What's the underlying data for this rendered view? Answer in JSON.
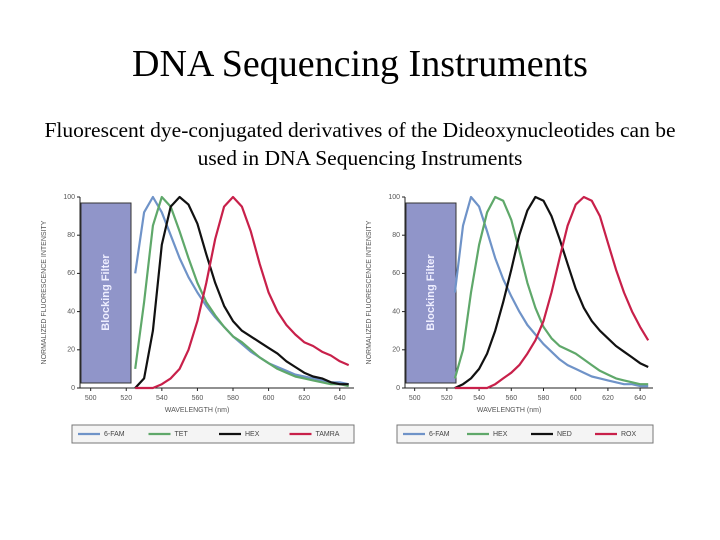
{
  "title": "DNA Sequencing Instruments",
  "subtitle": "Fluorescent dye-conjugated derivatives of the Dideoxynucleotides can be used in DNA Sequencing Instruments",
  "chart_data": [
    {
      "type": "line",
      "annotation": "Blocking Filter",
      "x_label": "WAVELENGTH (nm)",
      "y_label": "NORMALIZED FLUORESCENCE INTENSITY",
      "x": [
        525,
        530,
        535,
        540,
        545,
        550,
        555,
        560,
        565,
        570,
        575,
        580,
        585,
        590,
        595,
        600,
        605,
        610,
        615,
        620,
        625,
        630,
        635,
        640,
        645
      ],
      "series": [
        {
          "name": "6-FAM",
          "color": "#6f93c8",
          "values": [
            60,
            92,
            100,
            92,
            80,
            68,
            58,
            50,
            43,
            37,
            32,
            27,
            23,
            19,
            16,
            13,
            11,
            9,
            7,
            6,
            5,
            4,
            3,
            3,
            2
          ]
        },
        {
          "name": "TET",
          "color": "#5fa86a",
          "values": [
            10,
            45,
            85,
            100,
            95,
            82,
            68,
            55,
            45,
            38,
            32,
            27,
            24,
            20,
            16,
            13,
            10,
            8,
            6,
            5,
            4,
            3,
            2,
            2,
            1
          ]
        },
        {
          "name": "HEX",
          "color": "#111111",
          "values": [
            0,
            5,
            30,
            75,
            95,
            100,
            96,
            86,
            70,
            55,
            43,
            35,
            30,
            27,
            24,
            21,
            18,
            14,
            11,
            8,
            6,
            5,
            3,
            2,
            2
          ]
        },
        {
          "name": "TAMRA",
          "color": "#c8204a",
          "values": [
            0,
            0,
            0,
            2,
            5,
            10,
            20,
            35,
            55,
            78,
            95,
            100,
            95,
            82,
            65,
            50,
            40,
            33,
            28,
            24,
            22,
            19,
            17,
            14,
            12
          ]
        }
      ],
      "xlim": [
        494,
        648
      ],
      "ylim": [
        0,
        100
      ],
      "xticks": [
        500,
        520,
        540,
        560,
        580,
        600,
        620,
        640
      ],
      "yticks": [
        0,
        20,
        40,
        60,
        80,
        100
      ]
    },
    {
      "type": "line",
      "annotation": "Blocking Filter",
      "x_label": "WAVELENGTH (nm)",
      "y_label": "NORMALIZED FLUORESCENCE INTENSITY",
      "x": [
        525,
        530,
        535,
        540,
        545,
        550,
        555,
        560,
        565,
        570,
        575,
        580,
        585,
        590,
        595,
        600,
        605,
        610,
        615,
        620,
        625,
        630,
        635,
        640,
        645
      ],
      "series": [
        {
          "name": "6-FAM",
          "color": "#6f93c8",
          "values": [
            50,
            85,
            100,
            95,
            82,
            68,
            57,
            48,
            40,
            33,
            28,
            23,
            19,
            15,
            12,
            10,
            8,
            6,
            5,
            4,
            3,
            2,
            2,
            1,
            1
          ]
        },
        {
          "name": "HEX",
          "color": "#5fa86a",
          "values": [
            5,
            20,
            50,
            75,
            92,
            100,
            98,
            88,
            72,
            55,
            42,
            32,
            26,
            22,
            20,
            18,
            15,
            12,
            9,
            7,
            5,
            4,
            3,
            2,
            2
          ]
        },
        {
          "name": "NED",
          "color": "#111111",
          "values": [
            0,
            2,
            5,
            10,
            18,
            30,
            45,
            62,
            80,
            93,
            100,
            98,
            90,
            78,
            65,
            52,
            42,
            35,
            30,
            26,
            22,
            19,
            16,
            13,
            11
          ]
        },
        {
          "name": "ROX",
          "color": "#c8204a",
          "values": [
            0,
            0,
            0,
            0,
            0,
            2,
            5,
            8,
            12,
            18,
            25,
            35,
            50,
            68,
            85,
            96,
            100,
            98,
            90,
            76,
            62,
            50,
            40,
            32,
            25
          ]
        }
      ],
      "xlim": [
        494,
        648
      ],
      "ylim": [
        0,
        100
      ],
      "xticks": [
        500,
        520,
        540,
        560,
        580,
        600,
        620,
        640
      ],
      "yticks": [
        0,
        20,
        40,
        60,
        80,
        100
      ]
    }
  ]
}
